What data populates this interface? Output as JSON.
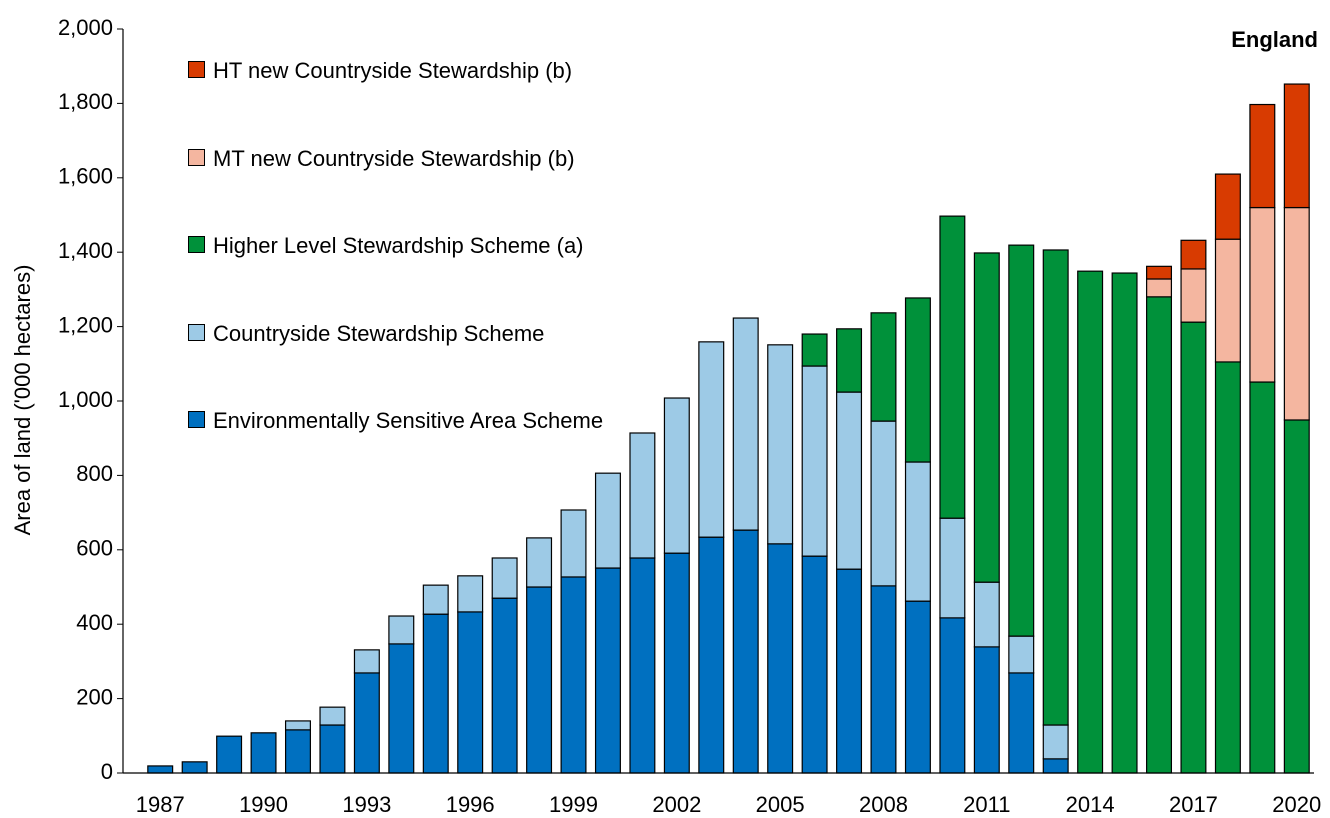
{
  "chart_data": {
    "type": "stacked_bar",
    "title": "England",
    "y_label": "Area of land ('000  hectares)",
    "categories": [
      "1987",
      null,
      null,
      "1990",
      null,
      null,
      "1993",
      null,
      null,
      "1996",
      null,
      null,
      "1999",
      null,
      null,
      "2002",
      null,
      null,
      "2005",
      null,
      null,
      "2008",
      null,
      null,
      "2011",
      null,
      null,
      "2014",
      null,
      null,
      "2017",
      null,
      null,
      "2020"
    ],
    "series": [
      {
        "name": "Environmentally Sensitive Area Scheme",
        "color": "#0070c0",
        "values": [
          19,
          30,
          99,
          108,
          116,
          129,
          269,
          347,
          427,
          433,
          470,
          500,
          527,
          551,
          578,
          591,
          634,
          653,
          616,
          583,
          548,
          503,
          462,
          417,
          339,
          269,
          38,
          null,
          null,
          null,
          null,
          null,
          null,
          null
        ]
      },
      {
        "name": "Countryside Stewardship Scheme",
        "color": "#9dcae6",
        "values": [
          null,
          null,
          null,
          null,
          24,
          48,
          62,
          75,
          78,
          97,
          108,
          132,
          180,
          255,
          336,
          417,
          525,
          570,
          535,
          511,
          476,
          443,
          374,
          268,
          174,
          99,
          91,
          null,
          null,
          null,
          null,
          null,
          null,
          null
        ]
      },
      {
        "name": "Higher Level Stewardship Scheme (a)",
        "color": "#00913a",
        "values": [
          null,
          null,
          null,
          null,
          null,
          null,
          null,
          null,
          null,
          null,
          null,
          null,
          null,
          null,
          null,
          null,
          null,
          null,
          null,
          86,
          170,
          291,
          441,
          812,
          885,
          1051,
          1277,
          1349,
          1344,
          1280,
          1212,
          1105,
          1051,
          949
        ]
      },
      {
        "name": "MT new Countryside Stewardship (b)",
        "color": "#f4b6a0",
        "values": [
          null,
          null,
          null,
          null,
          null,
          null,
          null,
          null,
          null,
          null,
          null,
          null,
          null,
          null,
          null,
          null,
          null,
          null,
          null,
          null,
          null,
          null,
          null,
          null,
          null,
          null,
          null,
          null,
          null,
          48,
          143,
          330,
          469,
          571
        ]
      },
      {
        "name": "HT new Countryside Stewardship (b)",
        "color": "#d83b01",
        "values": [
          null,
          null,
          null,
          null,
          null,
          null,
          null,
          null,
          null,
          null,
          null,
          null,
          null,
          null,
          null,
          null,
          null,
          null,
          null,
          null,
          null,
          null,
          null,
          null,
          null,
          null,
          null,
          null,
          null,
          34,
          77,
          175,
          277,
          332
        ]
      }
    ],
    "ylim": [
      0,
      2000
    ],
    "yticks": [
      0,
      200,
      400,
      600,
      800,
      {
        "value": 1000,
        "label": "1,000"
      },
      {
        "value": 1200,
        "label": "1,200"
      },
      {
        "value": 1400,
        "label": "1,400"
      },
      {
        "value": 1600,
        "label": "1,600"
      },
      {
        "value": 1800,
        "label": "1,800"
      },
      {
        "value": 2000,
        "label": "2,000"
      }
    ],
    "grid": false
  }
}
